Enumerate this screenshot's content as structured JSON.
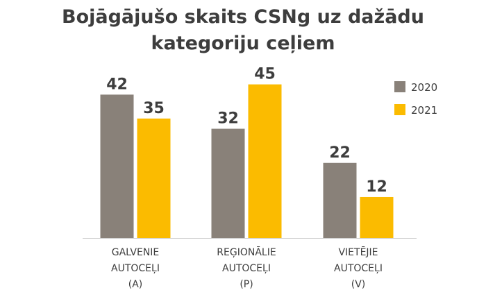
{
  "chart_data": {
    "type": "bar",
    "title": [
      "Bojāgājušo skaits CSNg uz dažādu",
      "kategoriju ceļiem"
    ],
    "categories": [
      [
        "GALVENIE",
        "AUTOCEĻI",
        "(A)"
      ],
      [
        "REĢIONĀLIE",
        "AUTOCEĻI",
        "(P)"
      ],
      [
        "VIETĒJIE",
        "AUTOCEĻI",
        "(V)"
      ]
    ],
    "series": [
      {
        "name": "2020",
        "color": "#898179",
        "values": [
          42,
          32,
          22
        ]
      },
      {
        "name": "2021",
        "color": "#fbbb00",
        "values": [
          35,
          45,
          12
        ]
      }
    ],
    "ylim": [
      0,
      50
    ],
    "grid": false,
    "legend_position": "top-right",
    "axis_color": "#d0d0d0"
  }
}
